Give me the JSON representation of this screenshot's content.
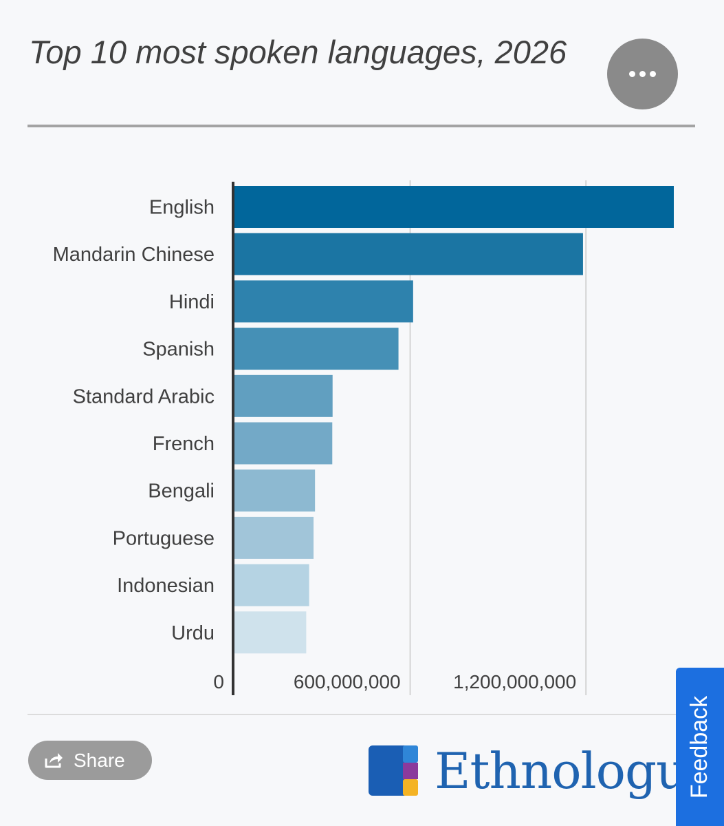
{
  "header": {
    "title": "Top 10 most spoken languages, 2026",
    "menu_icon": "more-horizontal-icon"
  },
  "chart_data": {
    "type": "bar",
    "orientation": "horizontal",
    "categories": [
      "English",
      "Mandarin Chinese",
      "Hindi",
      "Spanish",
      "Standard Arabic",
      "French",
      "Bengali",
      "Portuguese",
      "Indonesian",
      "Urdu"
    ],
    "values": [
      1500000000,
      1190000000,
      610000000,
      560000000,
      335000000,
      334000000,
      275000000,
      270000000,
      255000000,
      245000000
    ],
    "colors": [
      "#01669b",
      "#1b75a3",
      "#2e82ad",
      "#4590b6",
      "#619fc0",
      "#73a9c7",
      "#8db9d1",
      "#a1c5d9",
      "#b5d3e3",
      "#cfe2ec"
    ],
    "tick_values": [
      0,
      600000000,
      1200000000
    ],
    "tick_labels": [
      "0",
      "600,000,000",
      "1,200,000,000"
    ],
    "xlim": [
      0,
      1500000000
    ],
    "grid": true,
    "legend": "none"
  },
  "footer": {
    "share_label": "Share",
    "share_icon": "share-icon",
    "brand_name": "Ethnologue",
    "brand_icon": "ethnologue-logo-icon",
    "feedback_label": "Feedback"
  }
}
